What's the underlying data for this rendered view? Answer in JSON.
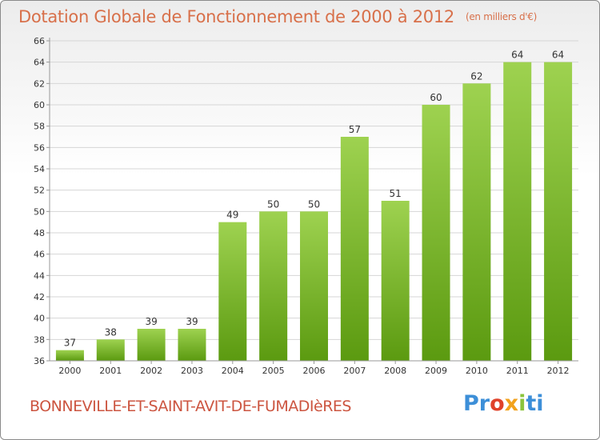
{
  "header": {
    "title": "Dotation Globale de Fonctionnement de 2000 à 2012",
    "unit": "(en milliers d'€)"
  },
  "footer": {
    "commune": "BONNEVILLE-ET-SAINT-AVIT-DE-FUMADIèRES",
    "logo": [
      "Pr",
      "o",
      "x",
      "i",
      "ti"
    ]
  },
  "colors": {
    "title": "#d8704a",
    "bar_top": "#9ed250",
    "bar_bottom": "#5b9a10",
    "grid": "#d6d6d6"
  },
  "chart_data": {
    "type": "bar",
    "title": "Dotation Globale de Fonctionnement de 2000 à 2012",
    "subtitle": "(en milliers d'€)",
    "categories": [
      "2000",
      "2001",
      "2002",
      "2003",
      "2004",
      "2005",
      "2006",
      "2007",
      "2008",
      "2009",
      "2010",
      "2011",
      "2012"
    ],
    "values": [
      37,
      38,
      39,
      39,
      49,
      50,
      50,
      57,
      51,
      60,
      62,
      64,
      64
    ],
    "ylim": [
      36,
      66
    ],
    "yticks": [
      36,
      38,
      40,
      42,
      44,
      46,
      48,
      50,
      52,
      54,
      56,
      58,
      60,
      62,
      64,
      66
    ],
    "grid": true,
    "data_labels": true
  }
}
